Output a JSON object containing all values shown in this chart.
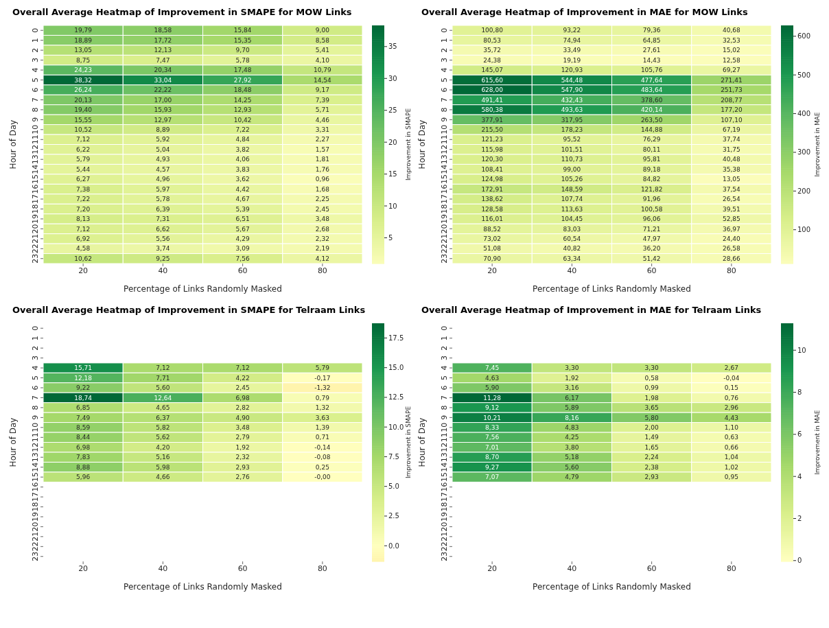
{
  "chart_data": [
    {
      "type": "heatmap",
      "title": "Overall Average Heatmap of Improvement in SMAPE for MOW Links",
      "xlabel": "Percentage of Links Randomly Masked",
      "ylabel": "Hour of Day",
      "clabel": "Improvement in SMAPE",
      "categories": [
        "20",
        "40",
        "60",
        "80"
      ],
      "y_categories": [
        "0",
        "1",
        "2",
        "3",
        "4",
        "5",
        "6",
        "7",
        "8",
        "9",
        "10",
        "11",
        "12",
        "13",
        "14",
        "15",
        "16",
        "17",
        "18",
        "19",
        "20",
        "21",
        "22",
        "23"
      ],
      "clim": [
        0.96,
        38.32
      ],
      "cticks": [
        5,
        10,
        15,
        20,
        25,
        30,
        35
      ],
      "cell_labels": [
        [
          "19,79",
          "18,58",
          "15,84",
          "9,00"
        ],
        [
          "18,89",
          "17,72",
          "15,35",
          "8,58"
        ],
        [
          "13,05",
          "12,13",
          "9,70",
          "5,41"
        ],
        [
          "8,75",
          "7,47",
          "5,78",
          "4,10"
        ],
        [
          "24,23",
          "20,34",
          "17,48",
          "10,79"
        ],
        [
          "38,32",
          "33,04",
          "27,92",
          "14,54"
        ],
        [
          "26,24",
          "22,22",
          "18,48",
          "9,17"
        ],
        [
          "20,13",
          "17,00",
          "14,25",
          "7,39"
        ],
        [
          "19,40",
          "15,93",
          "12,93",
          "5,71"
        ],
        [
          "15,55",
          "12,97",
          "10,42",
          "4,46"
        ],
        [
          "10,52",
          "8,89",
          "7,22",
          "3,31"
        ],
        [
          "7,12",
          "5,92",
          "4,84",
          "2,27"
        ],
        [
          "6,22",
          "5,04",
          "3,82",
          "1,57"
        ],
        [
          "5,79",
          "4,93",
          "4,06",
          "1,81"
        ],
        [
          "5,44",
          "4,57",
          "3,83",
          "1,76"
        ],
        [
          "6,27",
          "4,96",
          "3,62",
          "0,96"
        ],
        [
          "7,38",
          "5,97",
          "4,42",
          "1,68"
        ],
        [
          "7,22",
          "5,78",
          "4,67",
          "2,25"
        ],
        [
          "7,20",
          "6,39",
          "5,39",
          "2,45"
        ],
        [
          "8,13",
          "7,31",
          "6,51",
          "3,48"
        ],
        [
          "7,12",
          "6,62",
          "5,67",
          "2,68"
        ],
        [
          "6,92",
          "5,56",
          "4,29",
          "2,32"
        ],
        [
          "4,58",
          "3,74",
          "3,09",
          "2,19"
        ],
        [
          "10,62",
          "9,25",
          "7,56",
          "4,12"
        ]
      ],
      "cells": [
        [
          19.79,
          18.58,
          15.84,
          9.0
        ],
        [
          18.89,
          17.72,
          15.35,
          8.58
        ],
        [
          13.05,
          12.13,
          9.7,
          5.41
        ],
        [
          8.75,
          7.47,
          5.78,
          4.1
        ],
        [
          24.23,
          20.34,
          17.48,
          10.79
        ],
        [
          38.32,
          33.04,
          27.92,
          14.54
        ],
        [
          26.24,
          22.22,
          18.48,
          9.17
        ],
        [
          20.13,
          17.0,
          14.25,
          7.39
        ],
        [
          19.4,
          15.93,
          12.93,
          5.71
        ],
        [
          15.55,
          12.97,
          10.42,
          4.46
        ],
        [
          10.52,
          8.89,
          7.22,
          3.31
        ],
        [
          7.12,
          5.92,
          4.84,
          2.27
        ],
        [
          6.22,
          5.04,
          3.82,
          1.57
        ],
        [
          5.79,
          4.93,
          4.06,
          1.81
        ],
        [
          5.44,
          4.57,
          3.83,
          1.76
        ],
        [
          6.27,
          4.96,
          3.62,
          0.96
        ],
        [
          7.38,
          5.97,
          4.42,
          1.68
        ],
        [
          7.22,
          5.78,
          4.67,
          2.25
        ],
        [
          7.2,
          6.39,
          5.39,
          2.45
        ],
        [
          8.13,
          7.31,
          6.51,
          3.48
        ],
        [
          7.12,
          6.62,
          5.67,
          2.68
        ],
        [
          6.92,
          5.56,
          4.29,
          2.32
        ],
        [
          4.58,
          3.74,
          3.09,
          2.19
        ],
        [
          10.62,
          9.25,
          7.56,
          4.12
        ]
      ]
    },
    {
      "type": "heatmap",
      "title": "Overall Average Heatmap of Improvement in MAE for MOW Links",
      "xlabel": "Percentage of Links Randomly Masked",
      "ylabel": "Hour of Day",
      "clabel": "Improvement in MAE",
      "categories": [
        "20",
        "40",
        "60",
        "80"
      ],
      "y_categories": [
        "0",
        "1",
        "2",
        "3",
        "4",
        "5",
        "6",
        "7",
        "8",
        "9",
        "10",
        "11",
        "12",
        "13",
        "14",
        "15",
        "16",
        "17",
        "18",
        "19",
        "20",
        "21",
        "22",
        "23"
      ],
      "clim": [
        12.58,
        628.0
      ],
      "cticks": [
        100,
        200,
        300,
        400,
        500,
        600
      ],
      "cell_labels": [
        [
          "100,80",
          "93,22",
          "79,36",
          "40,68"
        ],
        [
          "80,53",
          "74,94",
          "64,85",
          "32,53"
        ],
        [
          "35,72",
          "33,49",
          "27,61",
          "15,02"
        ],
        [
          "24,38",
          "19,19",
          "14,43",
          "12,58"
        ],
        [
          "145,07",
          "120,93",
          "105,76",
          "69,27"
        ],
        [
          "615,60",
          "544,48",
          "477,64",
          "271,41"
        ],
        [
          "628,00",
          "547,90",
          "483,64",
          "251,73"
        ],
        [
          "491,41",
          "432,43",
          "378,60",
          "208,77"
        ],
        [
          "580,38",
          "493,63",
          "420,14",
          "177,20"
        ],
        [
          "377,91",
          "317,95",
          "263,50",
          "107,10"
        ],
        [
          "215,50",
          "178,23",
          "144,88",
          "67,19"
        ],
        [
          "121,23",
          "95,52",
          "76,29",
          "37,74"
        ],
        [
          "115,98",
          "101,51",
          "80,11",
          "31,75"
        ],
        [
          "120,30",
          "110,73",
          "95,81",
          "40,48"
        ],
        [
          "108,41",
          "99,00",
          "89,18",
          "35,38"
        ],
        [
          "124,98",
          "105,26",
          "84,82",
          "13,05"
        ],
        [
          "172,91",
          "148,59",
          "121,82",
          "37,54"
        ],
        [
          "138,62",
          "107,74",
          "91,96",
          "26,54"
        ],
        [
          "128,58",
          "113,63",
          "100,58",
          "39,51"
        ],
        [
          "116,01",
          "104,45",
          "96,06",
          "52,85"
        ],
        [
          "88,52",
          "83,03",
          "71,21",
          "36,97"
        ],
        [
          "73,02",
          "60,54",
          "47,97",
          "24,40"
        ],
        [
          "51,08",
          "40,82",
          "36,20",
          "26,58"
        ],
        [
          "70,90",
          "63,34",
          "51,42",
          "28,66"
        ]
      ],
      "cells": [
        [
          100.8,
          93.22,
          79.36,
          40.68
        ],
        [
          80.53,
          74.94,
          64.85,
          32.53
        ],
        [
          35.72,
          33.49,
          27.61,
          15.02
        ],
        [
          24.38,
          19.19,
          14.43,
          12.58
        ],
        [
          145.07,
          120.93,
          105.76,
          69.27
        ],
        [
          615.6,
          544.48,
          477.64,
          271.41
        ],
        [
          628.0,
          547.9,
          483.64,
          251.73
        ],
        [
          491.41,
          432.43,
          378.6,
          208.77
        ],
        [
          580.38,
          493.63,
          420.14,
          177.2
        ],
        [
          377.91,
          317.95,
          263.5,
          107.1
        ],
        [
          215.5,
          178.23,
          144.88,
          67.19
        ],
        [
          121.23,
          95.52,
          76.29,
          37.74
        ],
        [
          115.98,
          101.51,
          80.11,
          31.75
        ],
        [
          120.3,
          110.73,
          95.81,
          40.48
        ],
        [
          108.41,
          99.0,
          89.18,
          35.38
        ],
        [
          124.98,
          105.26,
          84.82,
          13.05
        ],
        [
          172.91,
          148.59,
          121.82,
          37.54
        ],
        [
          138.62,
          107.74,
          91.96,
          26.54
        ],
        [
          128.58,
          113.63,
          100.58,
          39.51
        ],
        [
          116.01,
          104.45,
          96.06,
          52.85
        ],
        [
          88.52,
          83.03,
          71.21,
          36.97
        ],
        [
          73.02,
          60.54,
          47.97,
          24.4
        ],
        [
          51.08,
          40.82,
          36.2,
          26.58
        ],
        [
          70.9,
          63.34,
          51.42,
          28.66
        ]
      ]
    },
    {
      "type": "heatmap",
      "title": "Overall Average Heatmap of Improvement in SMAPE for Telraam Links",
      "xlabel": "Percentage of Links Randomly Masked",
      "ylabel": "Hour of Day",
      "clabel": "Improvement in SMAPE",
      "categories": [
        "20",
        "40",
        "60",
        "80"
      ],
      "y_categories": [
        "0",
        "1",
        "2",
        "3",
        "4",
        "5",
        "6",
        "7",
        "8",
        "9",
        "10",
        "11",
        "12",
        "13",
        "14",
        "15",
        "16",
        "17",
        "18",
        "19",
        "20",
        "21",
        "22",
        "23"
      ],
      "clim": [
        -1.32,
        18.74
      ],
      "cell_labels": [
        [
          null,
          null,
          null,
          null
        ],
        [
          null,
          null,
          null,
          null
        ],
        [
          null,
          null,
          null,
          null
        ],
        [
          null,
          null,
          null,
          null
        ],
        [
          "15,71",
          "7,12",
          "7,12",
          "5,79"
        ],
        [
          "12,18",
          "7,71",
          "4,22",
          "-0,17"
        ],
        [
          "9,22",
          "5,60",
          "2,45",
          "-1,32"
        ],
        [
          "18,74",
          "12,64",
          "6,98",
          "0,79"
        ],
        [
          "6,85",
          "4,65",
          "2,82",
          "1,32"
        ],
        [
          "7,49",
          "6,37",
          "4,90",
          "3,63"
        ],
        [
          "8,59",
          "5,82",
          "3,48",
          "1,39"
        ],
        [
          "8,44",
          "5,62",
          "2,79",
          "0,71"
        ],
        [
          "6,98",
          "4,20",
          "1,92",
          "-0,14"
        ],
        [
          "7,83",
          "5,16",
          "2,32",
          "-0,08"
        ],
        [
          "8,88",
          "5,98",
          "2,93",
          "0,25"
        ],
        [
          "5,96",
          "4,66",
          "2,76",
          "-0,00"
        ],
        [
          null,
          null,
          null,
          null
        ],
        [
          null,
          null,
          null,
          null
        ],
        [
          null,
          null,
          null,
          null
        ],
        [
          null,
          null,
          null,
          null
        ],
        [
          null,
          null,
          null,
          null
        ],
        [
          null,
          null,
          null,
          null
        ],
        [
          null,
          null,
          null,
          null
        ],
        [
          null,
          null,
          null,
          null
        ]
      ],
      "cticks": [
        {
          "value": 0,
          "label": "0.0"
        },
        {
          "value": 2.5,
          "label": "2.5"
        },
        {
          "value": 5,
          "label": "5.0"
        },
        {
          "value": 7.5,
          "label": "7.5"
        },
        {
          "value": 10,
          "label": "10.0"
        },
        {
          "value": 12.5,
          "label": "12.5"
        },
        {
          "value": 15,
          "label": "15.0"
        },
        {
          "value": 17.5,
          "label": "17.5"
        }
      ],
      "cells": [
        [
          null,
          null,
          null,
          null
        ],
        [
          null,
          null,
          null,
          null
        ],
        [
          null,
          null,
          null,
          null
        ],
        [
          null,
          null,
          null,
          null
        ],
        [
          15.71,
          7.12,
          7.12,
          5.79
        ],
        [
          12.18,
          7.71,
          4.22,
          -0.17
        ],
        [
          9.22,
          5.6,
          2.45,
          -1.32
        ],
        [
          18.74,
          12.64,
          6.98,
          0.79
        ],
        [
          6.85,
          4.65,
          2.82,
          1.32
        ],
        [
          7.49,
          6.37,
          4.9,
          3.63
        ],
        [
          8.59,
          5.82,
          3.48,
          1.39
        ],
        [
          8.44,
          5.62,
          2.79,
          0.71
        ],
        [
          6.98,
          4.2,
          1.92,
          -0.14
        ],
        [
          7.83,
          5.16,
          2.32,
          -0.08
        ],
        [
          8.88,
          5.98,
          2.93,
          0.25
        ],
        [
          5.96,
          4.66,
          2.76,
          -0.0
        ],
        [
          null,
          null,
          null,
          null
        ],
        [
          null,
          null,
          null,
          null
        ],
        [
          null,
          null,
          null,
          null
        ],
        [
          null,
          null,
          null,
          null
        ],
        [
          null,
          null,
          null,
          null
        ],
        [
          null,
          null,
          null,
          null
        ],
        [
          null,
          null,
          null,
          null
        ],
        [
          null,
          null,
          null,
          null
        ]
      ]
    },
    {
      "type": "heatmap",
      "title": "Overall Average Heatmap of Improvement in MAE for Telraam Links",
      "xlabel": "Percentage of Links Randomly Masked",
      "ylabel": "Hour of Day",
      "clabel": "Improvement in MAE",
      "categories": [
        "20",
        "40",
        "60",
        "80"
      ],
      "y_categories": [
        "0",
        "1",
        "2",
        "3",
        "4",
        "5",
        "6",
        "7",
        "8",
        "9",
        "10",
        "11",
        "12",
        "13",
        "14",
        "15",
        "16",
        "17",
        "18",
        "19",
        "20",
        "21",
        "22",
        "23"
      ],
      "clim": [
        -0.04,
        11.28
      ],
      "cell_labels": [
        [
          null,
          null,
          null,
          null
        ],
        [
          null,
          null,
          null,
          null
        ],
        [
          null,
          null,
          null,
          null
        ],
        [
          null,
          null,
          null,
          null
        ],
        [
          "7,45",
          "3,30",
          "3,30",
          "2,67"
        ],
        [
          "4,63",
          "1,92",
          "0,58",
          "-0,04"
        ],
        [
          "5,90",
          "3,16",
          "0,99",
          "0,15"
        ],
        [
          "11,28",
          "6,17",
          "1,98",
          "0,76"
        ],
        [
          "9,12",
          "5,89",
          "3,65",
          "2,96"
        ],
        [
          "10,21",
          "8,16",
          "5,80",
          "4,43"
        ],
        [
          "8,33",
          "4,83",
          "2,00",
          "1,10"
        ],
        [
          "7,56",
          "4,25",
          "1,49",
          "0,63"
        ],
        [
          "7,01",
          "3,80",
          "1,65",
          "0,66"
        ],
        [
          "8,70",
          "5,18",
          "2,24",
          "1,04"
        ],
        [
          "9,27",
          "5,60",
          "2,38",
          "1,02"
        ],
        [
          "7,07",
          "4,79",
          "2,93",
          "0,95"
        ],
        [
          null,
          null,
          null,
          null
        ],
        [
          null,
          null,
          null,
          null
        ],
        [
          null,
          null,
          null,
          null
        ],
        [
          null,
          null,
          null,
          null
        ],
        [
          null,
          null,
          null,
          null
        ],
        [
          null,
          null,
          null,
          null
        ],
        [
          null,
          null,
          null,
          null
        ],
        [
          null,
          null,
          null,
          null
        ]
      ],
      "cticks": [
        0,
        2,
        4,
        6,
        8,
        10
      ],
      "cells": [
        [
          null,
          null,
          null,
          null
        ],
        [
          null,
          null,
          null,
          null
        ],
        [
          null,
          null,
          null,
          null
        ],
        [
          null,
          null,
          null,
          null
        ],
        [
          7.45,
          3.3,
          3.3,
          2.67
        ],
        [
          4.63,
          1.92,
          0.58,
          -0.04
        ],
        [
          5.9,
          3.16,
          0.99,
          0.15
        ],
        [
          11.28,
          6.17,
          1.98,
          0.76
        ],
        [
          9.12,
          5.89,
          3.65,
          2.96
        ],
        [
          10.21,
          8.16,
          5.8,
          4.43
        ],
        [
          8.33,
          4.83,
          2.0,
          1.1
        ],
        [
          7.56,
          4.25,
          1.49,
          0.63
        ],
        [
          7.01,
          3.8,
          1.65,
          0.66
        ],
        [
          8.7,
          5.18,
          2.24,
          1.04
        ],
        [
          9.27,
          5.6,
          2.38,
          1.02
        ],
        [
          7.07,
          4.79,
          2.93,
          0.95
        ],
        [
          null,
          null,
          null,
          null
        ],
        [
          null,
          null,
          null,
          null
        ],
        [
          null,
          null,
          null,
          null
        ],
        [
          null,
          null,
          null,
          null
        ],
        [
          null,
          null,
          null,
          null
        ],
        [
          null,
          null,
          null,
          null
        ],
        [
          null,
          null,
          null,
          null
        ],
        [
          null,
          null,
          null,
          null
        ]
      ]
    }
  ]
}
